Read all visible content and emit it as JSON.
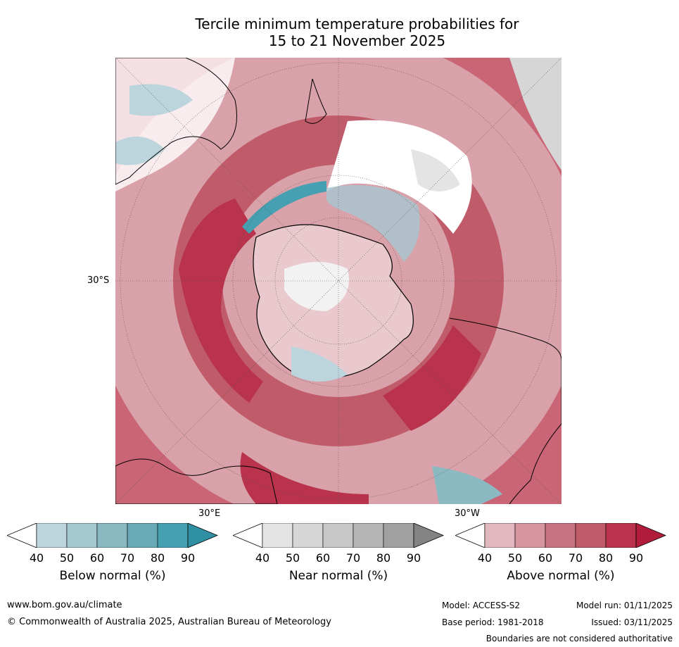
{
  "title_line1": "Tercile minimum temperature probabilities for",
  "title_line2": "15 to 21 November 2025",
  "map": {
    "lat_label": "30°S",
    "lon_label_left": "30°E",
    "lon_label_right": "30°W"
  },
  "colorbars": [
    {
      "label": "Below normal (%)",
      "ticks": [
        "40",
        "50",
        "60",
        "70",
        "80",
        "90"
      ],
      "colors": [
        "#ffffff",
        "#bcd4dc",
        "#a6c8d0",
        "#8bb9c2",
        "#6aa9b6",
        "#46a0b1",
        "#2f8fa3"
      ]
    },
    {
      "label": "Near normal (%)",
      "ticks": [
        "40",
        "50",
        "60",
        "70",
        "80",
        "90"
      ],
      "colors": [
        "#ffffff",
        "#e4e4e4",
        "#d6d6d6",
        "#c7c7c7",
        "#b5b5b5",
        "#a1a1a1",
        "#838383"
      ]
    },
    {
      "label": "Above normal (%)",
      "ticks": [
        "40",
        "50",
        "60",
        "70",
        "80",
        "90"
      ],
      "colors": [
        "#ffffff",
        "#e3b8be",
        "#d6969f",
        "#c97381",
        "#c05b6a",
        "#b8334b",
        "#b01c3a"
      ]
    }
  ],
  "footer": {
    "website": "www.bom.gov.au/climate",
    "copyright": "© Commonwealth of Australia 2025, Australian Bureau of Meteorology",
    "model": "Model: ACCESS-S2",
    "base_period": "Base period: 1981-2018",
    "model_run": "Model run: 01/11/2025",
    "issued": "Issued: 03/11/2025",
    "disclaimer": "Boundaries are not considered authoritative"
  }
}
